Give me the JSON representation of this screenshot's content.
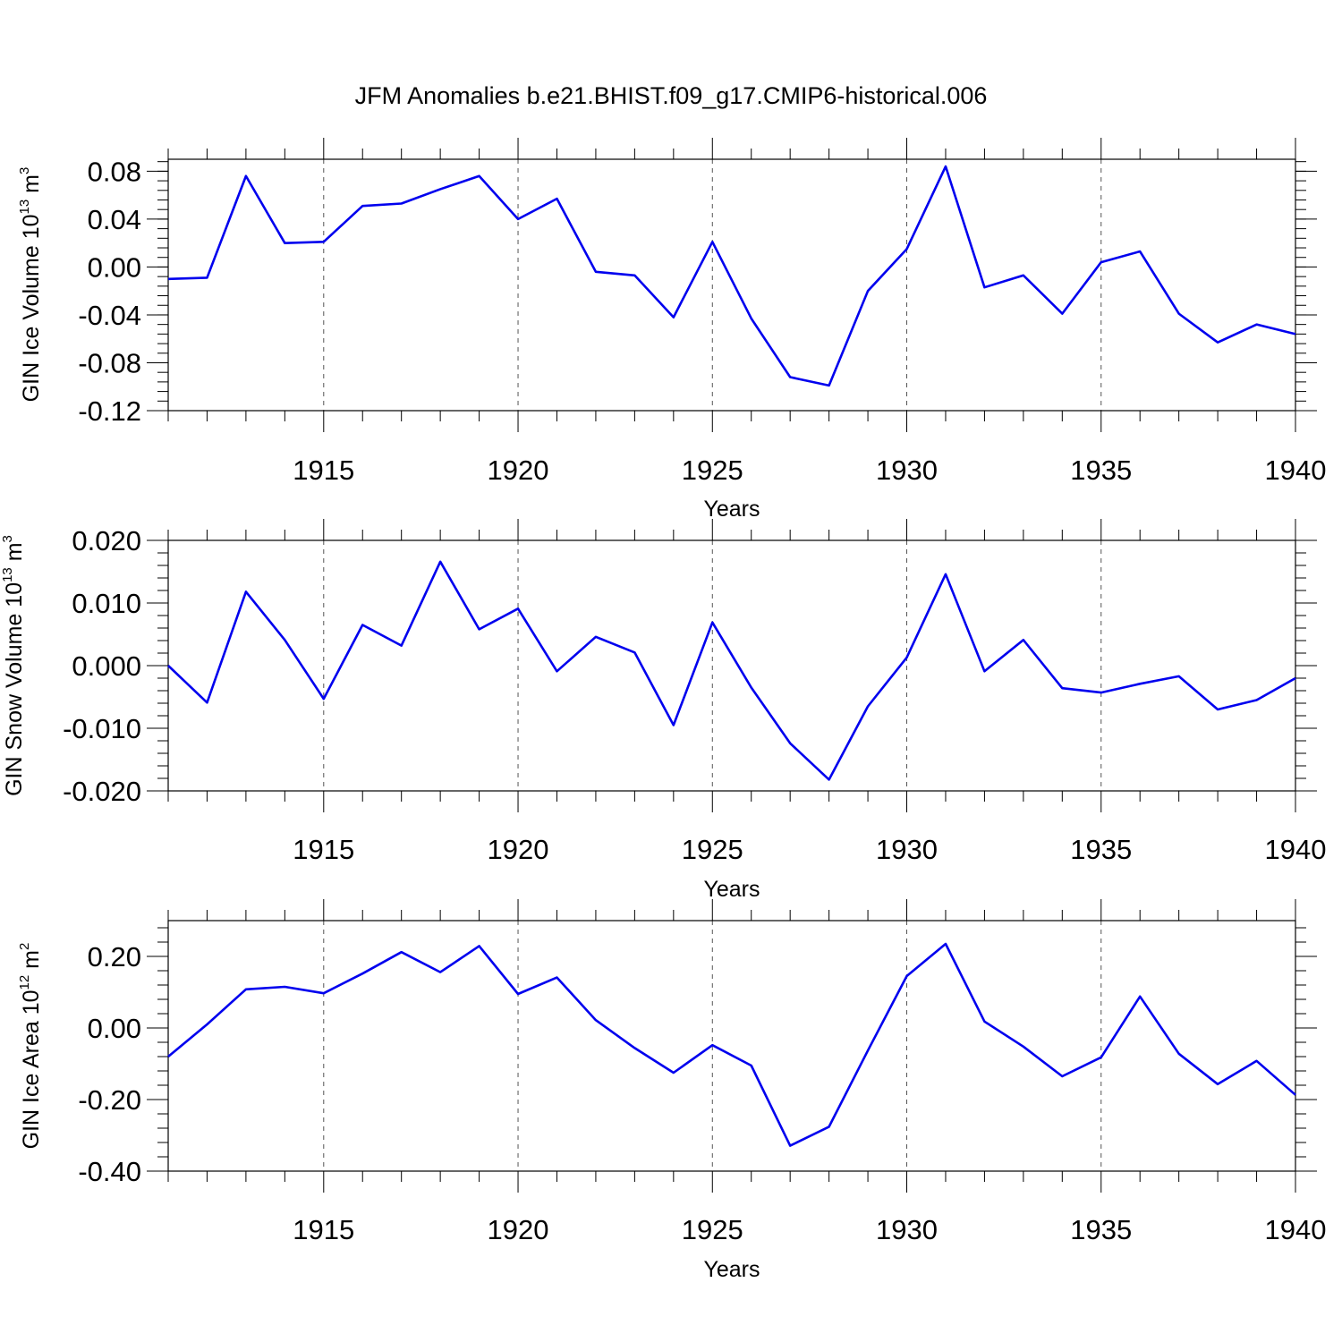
{
  "figure": {
    "title": "JFM Anomalies b.e21.BHIST.f09_g17.CMIP6-historical.006",
    "line_color": "#0000ee"
  },
  "chart_data": [
    {
      "type": "line",
      "title": "",
      "xlabel": "Years",
      "ylabel": {
        "base": "GIN Ice Volume 10",
        "exp": "13",
        "unit": " m",
        "unit_exp": "3"
      },
      "xlim": [
        1911,
        1940
      ],
      "ylim": [
        -0.12,
        0.09
      ],
      "x_ticks": [
        1915,
        1920,
        1925,
        1930,
        1935,
        1940
      ],
      "x_tick_labels": [
        "1915",
        "1920",
        "1925",
        "1930",
        "1935",
        "1940"
      ],
      "y_ticks": [
        -0.12,
        -0.08,
        -0.04,
        0.0,
        0.04,
        0.08
      ],
      "y_tick_labels": [
        "-0.12",
        "-0.08",
        "-0.04",
        "0.00",
        "0.04",
        "0.08"
      ],
      "y_minor_step": 0.008,
      "grid": "dashed vertical at major x ticks",
      "x": [
        1911,
        1912,
        1913,
        1914,
        1915,
        1916,
        1917,
        1918,
        1919,
        1920,
        1921,
        1922,
        1923,
        1924,
        1925,
        1926,
        1927,
        1928,
        1929,
        1930,
        1931,
        1932,
        1933,
        1934,
        1935,
        1936,
        1937,
        1938,
        1939,
        1940
      ],
      "values": [
        -0.01,
        -0.009,
        0.076,
        0.02,
        0.021,
        0.051,
        0.053,
        0.065,
        0.076,
        0.04,
        0.057,
        -0.004,
        -0.007,
        -0.042,
        0.021,
        -0.043,
        -0.092,
        -0.099,
        -0.02,
        0.015,
        0.084,
        -0.017,
        -0.007,
        -0.039,
        0.004,
        0.013,
        -0.039,
        -0.063,
        -0.048,
        -0.056
      ]
    },
    {
      "type": "line",
      "title": "",
      "xlabel": "Years",
      "ylabel": {
        "base": "GIN Snow Volume 10",
        "exp": "13",
        "unit": " m",
        "unit_exp": "3"
      },
      "xlim": [
        1911,
        1940
      ],
      "ylim": [
        -0.02,
        0.02
      ],
      "x_ticks": [
        1915,
        1920,
        1925,
        1930,
        1935,
        1940
      ],
      "x_tick_labels": [
        "1915",
        "1920",
        "1925",
        "1930",
        "1935",
        "1940"
      ],
      "y_ticks": [
        -0.02,
        -0.01,
        0.0,
        0.01,
        0.02
      ],
      "y_tick_labels": [
        "-0.020",
        "-0.010",
        "0.000",
        "0.010",
        "0.020"
      ],
      "y_minor_step": 0.002,
      "grid": "dashed vertical at major x ticks",
      "x": [
        1911,
        1912,
        1913,
        1914,
        1915,
        1916,
        1917,
        1918,
        1919,
        1920,
        1921,
        1922,
        1923,
        1924,
        1925,
        1926,
        1927,
        1928,
        1929,
        1930,
        1931,
        1932,
        1933,
        1934,
        1935,
        1936,
        1937,
        1938,
        1939,
        1940
      ],
      "values": [
        0.0,
        -0.0059,
        0.0118,
        0.0041,
        -0.0053,
        0.0065,
        0.0032,
        0.0166,
        0.0058,
        0.0091,
        -0.0009,
        0.0046,
        0.0021,
        -0.0095,
        0.0069,
        -0.0035,
        -0.0124,
        -0.0182,
        -0.0065,
        0.0013,
        0.0146,
        -0.0009,
        0.0041,
        -0.0036,
        -0.0043,
        -0.0029,
        -0.0017,
        -0.007,
        -0.0055,
        -0.002
      ]
    },
    {
      "type": "line",
      "title": "",
      "xlabel": "Years",
      "ylabel": {
        "base": "GIN Ice Area 10",
        "exp": "12",
        "unit": " m",
        "unit_exp": "2"
      },
      "xlim": [
        1911,
        1940
      ],
      "ylim": [
        -0.4,
        0.3
      ],
      "x_ticks": [
        1915,
        1920,
        1925,
        1930,
        1935,
        1940
      ],
      "x_tick_labels": [
        "1915",
        "1920",
        "1925",
        "1930",
        "1935",
        "1940"
      ],
      "y_ticks": [
        -0.4,
        -0.2,
        0.0,
        0.2
      ],
      "y_tick_labels": [
        "-0.40",
        "-0.20",
        "0.00",
        "0.20"
      ],
      "y_minor_step": 0.04,
      "grid": "dashed vertical at major x ticks",
      "x": [
        1911,
        1912,
        1913,
        1914,
        1915,
        1916,
        1917,
        1918,
        1919,
        1920,
        1921,
        1922,
        1923,
        1924,
        1925,
        1926,
        1927,
        1928,
        1929,
        1930,
        1931,
        1932,
        1933,
        1934,
        1935,
        1936,
        1937,
        1938,
        1939,
        1940
      ],
      "values": [
        -0.08,
        0.01,
        0.108,
        0.115,
        0.097,
        0.152,
        0.212,
        0.156,
        0.229,
        0.095,
        0.141,
        0.022,
        -0.056,
        -0.125,
        -0.048,
        -0.105,
        -0.329,
        -0.276,
        -0.063,
        0.145,
        0.235,
        0.018,
        -0.052,
        -0.135,
        -0.082,
        0.088,
        -0.072,
        -0.157,
        -0.092,
        -0.187
      ]
    }
  ]
}
